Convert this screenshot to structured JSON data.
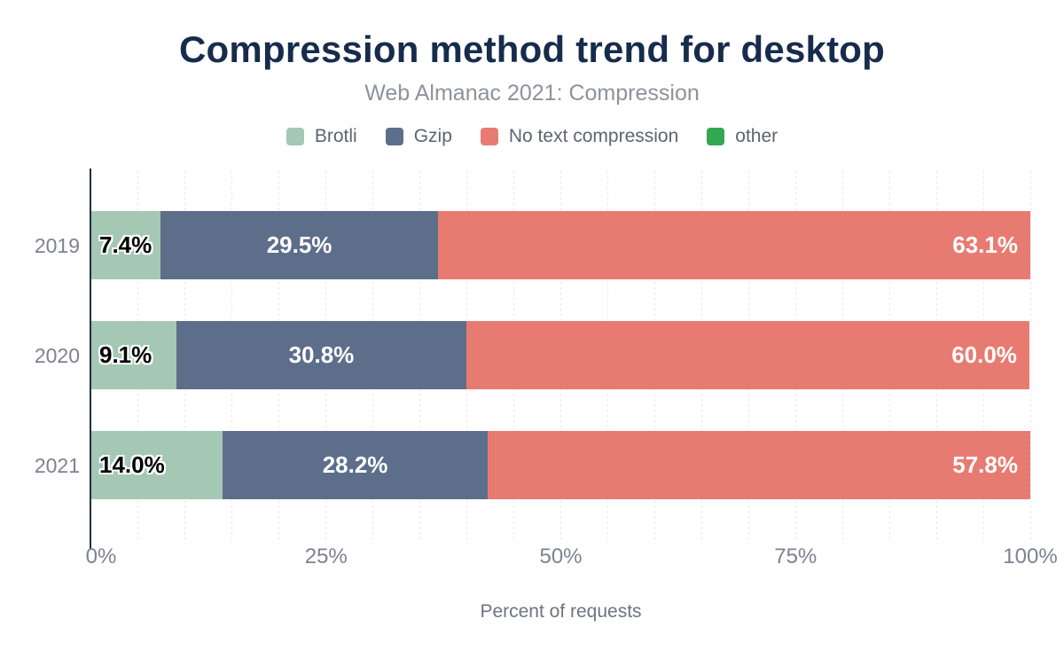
{
  "title": "Compression method trend for desktop",
  "subtitle": "Web Almanac 2021: Compression",
  "colors": {
    "background": "#ffffff",
    "title_text": "#172b4d",
    "subtitle_text": "#8d939c",
    "axis_line": "#202c49",
    "gridline": "#e9e9ee",
    "tick_text": "#7c8290",
    "legend_text": "#5d6470"
  },
  "legend": {
    "items": [
      "Brotli",
      "Gzip",
      "No text compression",
      "other"
    ]
  },
  "chart_data": {
    "type": "bar",
    "orientation": "horizontal",
    "stacked": true,
    "title": "Compression method trend for desktop",
    "subtitle": "Web Almanac 2021: Compression",
    "categories": [
      "2019",
      "2020",
      "2021"
    ],
    "series": [
      {
        "name": "Brotli",
        "color": "#a4c8b3",
        "values": [
          7.4,
          9.1,
          14.0
        ],
        "labels": [
          "7.4%",
          "9.1%",
          "14.0%"
        ],
        "label_style": "black-on-bar-start"
      },
      {
        "name": "Gzip",
        "color": "#5d6e8b",
        "values": [
          29.5,
          30.8,
          28.2
        ],
        "labels": [
          "29.5%",
          "30.8%",
          "28.2%"
        ],
        "label_style": "white-centered"
      },
      {
        "name": "No text compression",
        "color": "#e87b71",
        "values": [
          63.1,
          60.0,
          57.8
        ],
        "labels": [
          "63.1%",
          "60.0%",
          "57.8%"
        ],
        "label_style": "white-right-aligned"
      },
      {
        "name": "other",
        "color": "#33a852",
        "values": [
          0,
          0,
          0
        ],
        "labels": [
          "",
          "",
          ""
        ],
        "label_style": "none"
      }
    ],
    "xlabel": "Percent of requests",
    "ylabel": "",
    "xlim": [
      0,
      100
    ],
    "x_ticks": [
      {
        "value": 0,
        "label": "0%"
      },
      {
        "value": 25,
        "label": "25%"
      },
      {
        "value": 50,
        "label": "50%"
      },
      {
        "value": 75,
        "label": "75%"
      },
      {
        "value": 100,
        "label": "100%"
      }
    ],
    "grid": {
      "vertical_interval_percent": 5,
      "style": "dotted"
    },
    "legend_position": "top-center"
  }
}
